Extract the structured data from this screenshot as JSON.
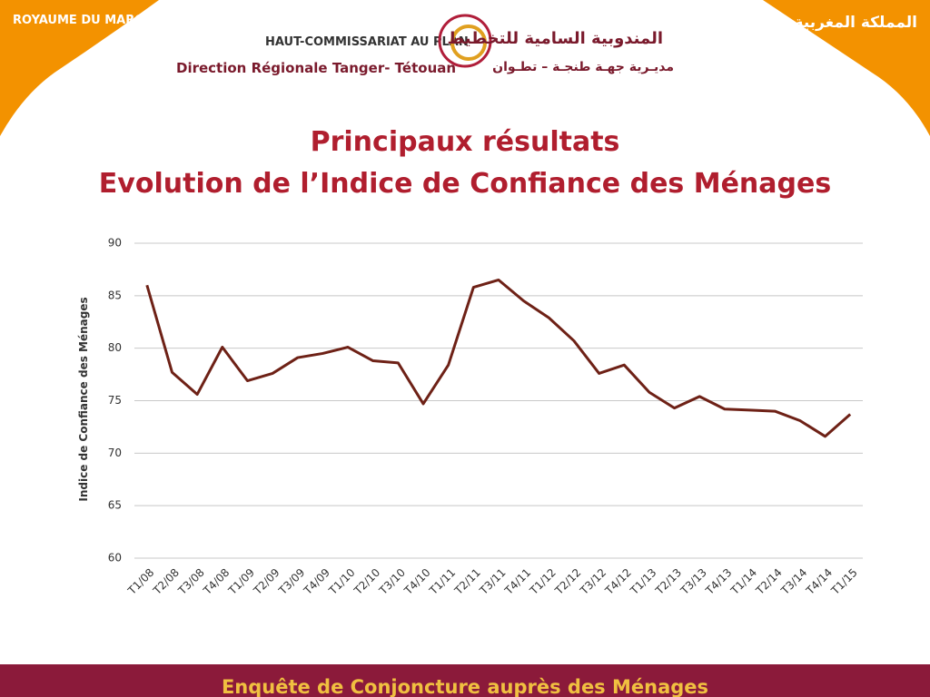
{
  "header": {
    "left": "ROYAUME DU MAROC",
    "right": "المملكة المغربية",
    "org_fr": "HAUT-COMMISSARIAT AU PLAN",
    "direction_fr": "Direction Régionale Tanger- Tétouan",
    "org_ar": "المندوبية السامية للتخطيط",
    "direction_ar": "مديـرية جهـة طنجـة – تطـوان"
  },
  "title_lines": [
    "Principaux résultats",
    "Evolution de l’Indice de Confiance des Ménages"
  ],
  "chart_data": {
    "type": "line",
    "y_label": "Indice de Confiance des Ménages",
    "categories": [
      "T1/08",
      "T2/08",
      "T3/08",
      "T4/08",
      "T1/09",
      "T2/09",
      "T3/09",
      "T4/09",
      "T1/10",
      "T2/10",
      "T3/10",
      "T4/10",
      "T1/11",
      "T2/11",
      "T3/11",
      "T4/11",
      "T1/12",
      "T2/12",
      "T3/12",
      "T4/12",
      "T1/13",
      "T2/13",
      "T3/13",
      "T4/13",
      "T1/14",
      "T2/14",
      "T3/14",
      "T4/14",
      "T1/15"
    ],
    "values": [
      86,
      77.7,
      75.6,
      80.1,
      76.9,
      77.6,
      79.1,
      79.5,
      80.1,
      78.8,
      78.6,
      74.7,
      78.4,
      85.8,
      86.5,
      84.5,
      82.9,
      80.7,
      77.6,
      78.4,
      75.8,
      74.3,
      75.4,
      74.2,
      74.1,
      74,
      73.1,
      71.6,
      73.7
    ],
    "color": "#6e2116",
    "ylim": [
      60,
      90
    ],
    "yticks": [
      60,
      65,
      70,
      75,
      80,
      85,
      90
    ],
    "grid": true
  },
  "footer": "Enquête de Conjoncture auprès des Ménages"
}
